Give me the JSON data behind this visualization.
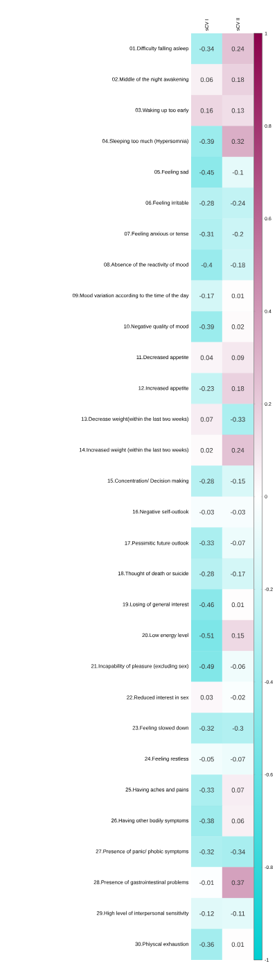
{
  "chart_data": {
    "type": "heatmap",
    "categories": [
      "sCV I",
      "sCV II"
    ],
    "y_categories": [
      "01.Difficulty falling asleep",
      "02.Middle of the night awakening",
      "03.Waking up too early",
      "04.Sleeping too much (Hypersomnia)",
      "05.Feeling sad",
      "06.Feeling irritable",
      "07.Feeling anxious or tense",
      "08.Absence of the reactivity of mood",
      "09.Mood variation according to the time of the day",
      "10.Negative quality of mood",
      "11.Decreased appetite",
      "12.Increased appetite",
      "13.Decrease weight(within the last two weeks)",
      "14.Increased weight (within the last two weeks)",
      "15.Concentration/ Decision making",
      "16.Negative self-outlook",
      "17.Pessimitic future outlook",
      "18.Thought of death or suicide",
      "19.Losing of general interest",
      "20.Low energy level",
      "21.Incapability of pleasure (excluding sex)",
      "22.Reduced interest in sex",
      "23.Feeling slowed down",
      "24.Feeling restless",
      "25.Having aches and pains",
      "26.Having other bodily symptoms",
      "27.Presence of panic/ phobic symptoms",
      "28.Presence of gastrointestinal problems",
      "29.High level of interpersonal sensitivity",
      "30.Phiyscal exhaustion"
    ],
    "cells": [
      [
        -0.34,
        0.24
      ],
      [
        0.06,
        0.18
      ],
      [
        0.16,
        0.13
      ],
      [
        -0.39,
        0.32
      ],
      [
        -0.45,
        -0.1
      ],
      [
        -0.28,
        -0.24
      ],
      [
        -0.31,
        -0.2
      ],
      [
        -0.4,
        -0.18
      ],
      [
        -0.17,
        0.01
      ],
      [
        -0.39,
        0.02
      ],
      [
        0.04,
        0.09
      ],
      [
        -0.23,
        0.18
      ],
      [
        0.07,
        -0.33
      ],
      [
        0.02,
        0.24
      ],
      [
        -0.28,
        -0.15
      ],
      [
        -0.03,
        -0.03
      ],
      [
        -0.33,
        -0.07
      ],
      [
        -0.28,
        -0.17
      ],
      [
        -0.46,
        0.01
      ],
      [
        -0.51,
        0.15
      ],
      [
        -0.49,
        -0.06
      ],
      [
        0.03,
        -0.02
      ],
      [
        -0.32,
        -0.3
      ],
      [
        -0.05,
        -0.07
      ],
      [
        -0.33,
        0.07
      ],
      [
        -0.38,
        0.06
      ],
      [
        -0.32,
        -0.34
      ],
      [
        -0.01,
        0.37
      ],
      [
        -0.12,
        -0.11
      ],
      [
        -0.36,
        0.01
      ]
    ],
    "data_labels": true,
    "clim": [
      -1,
      1
    ],
    "cticks": [
      -1,
      -0.8,
      -0.6,
      -0.4,
      -0.2,
      0,
      0.2,
      0.4,
      0.6,
      0.8,
      1
    ]
  }
}
